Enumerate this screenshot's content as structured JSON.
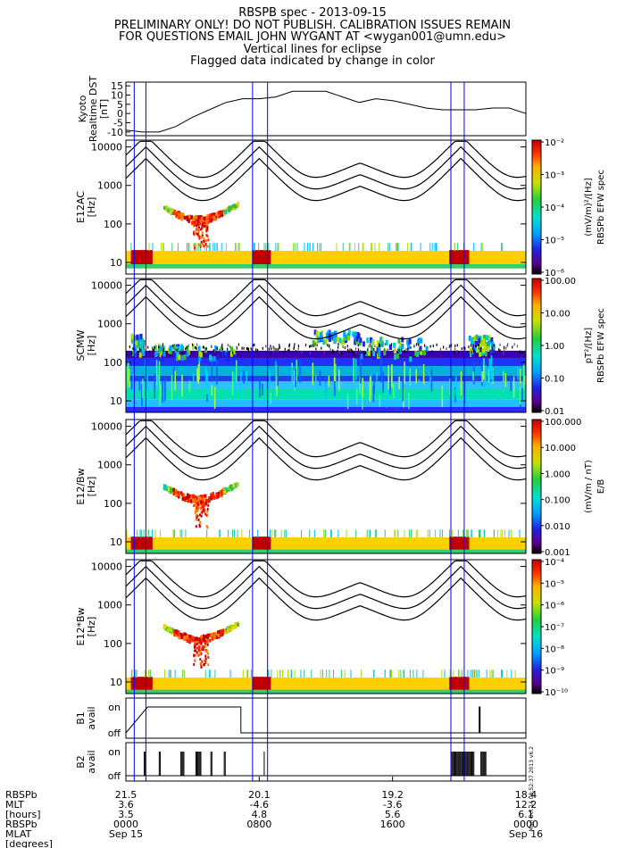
{
  "header": {
    "lines": [
      "RBSPB spec - 2013-09-15",
      "PRELIMINARY ONLY! DO NOT PUBLISH. CALIBRATION ISSUES REMAIN",
      "FOR QUESTIONS EMAIL JOHN WYGANT AT <wygan001@umn.edu>",
      "Vertical lines for eclipse",
      "Flagged data indicated by change in color"
    ]
  },
  "timestamp": "Mon Oct 14 08:52:37 2013 v6.2",
  "colors": {
    "eclipse_line": "#0000ff",
    "panel_border": "#000000",
    "bg": "#ffffff"
  },
  "chart_data": [
    {
      "type": "line",
      "id": "dst",
      "ylabel": [
        "Kyoto",
        "Realtime DST",
        "[nT]"
      ],
      "yticks": [
        "15",
        "10",
        "5",
        "0",
        "-5",
        "-10"
      ],
      "ylim": [
        -12,
        17
      ],
      "x_hours": [
        0,
        1,
        2,
        3,
        4,
        5,
        6,
        7,
        8,
        9,
        10,
        11,
        12,
        13,
        14,
        15,
        16,
        17,
        18,
        19,
        20,
        21,
        22,
        23,
        24
      ],
      "values": [
        -9,
        -10,
        -10,
        -7,
        -2,
        2,
        6,
        8,
        8,
        9,
        12,
        12,
        12,
        9,
        6,
        8,
        7,
        5,
        3,
        2,
        2,
        2,
        3,
        3,
        0
      ],
      "eclipse_hours": [
        0.5,
        1.2,
        7.6,
        8.5,
        19.5,
        20.3
      ]
    },
    {
      "type": "heatmap",
      "id": "e12ac",
      "ylabel": [
        "E12AC",
        "[Hz]"
      ],
      "yticks": [
        "10000",
        "1000",
        "100",
        "10"
      ],
      "colorbar_title": [
        "(mV/m)²/[Hz]",
        "RBSPb EFW spec"
      ],
      "colorbar_ticks": [
        "10⁻²",
        "10⁻³",
        "10⁻⁴",
        "10⁻⁵",
        "10⁻⁶"
      ]
    },
    {
      "type": "heatmap",
      "id": "scmw",
      "ylabel": [
        "SCMW",
        "[Hz]"
      ],
      "yticks": [
        "10000",
        "1000",
        "100",
        "10"
      ],
      "colorbar_title": [
        "pT²/[Hz]",
        "RBSPb EFW spec"
      ],
      "colorbar_ticks": [
        "100.00",
        "10.00",
        "1.00",
        "0.10",
        "0.01"
      ]
    },
    {
      "type": "heatmap",
      "id": "e12bw",
      "ylabel": [
        "E12/Bw",
        "[Hz]"
      ],
      "yticks": [
        "10000",
        "1000",
        "100",
        "10"
      ],
      "colorbar_title": [
        "(mV/m / nT)",
        "E/B"
      ],
      "colorbar_ticks": [
        "100.000",
        "10.000",
        "1.000",
        "0.100",
        "0.010",
        "0.001"
      ]
    },
    {
      "type": "heatmap",
      "id": "e12xbw",
      "ylabel": [
        "E12*Bw",
        "[Hz]"
      ],
      "yticks": [
        "10000",
        "1000",
        "100",
        "10"
      ],
      "colorbar_ticks": [
        "10⁻⁴",
        "10⁻⁵",
        "10⁻⁶",
        "10⁻⁷",
        "10⁻⁸",
        "10⁻⁹",
        "10⁻¹⁰"
      ]
    },
    {
      "type": "line",
      "id": "b1",
      "ylabel": [
        "B1",
        "avail"
      ],
      "yticks": [
        "on",
        "off"
      ],
      "segments_hours": [
        [
          0,
          0
        ],
        [
          1.3,
          1.3
        ],
        [
          1.3,
          1
        ],
        [
          6.9,
          1
        ],
        [
          6.9,
          0
        ],
        [
          21.2,
          0
        ],
        [
          21.2,
          1
        ],
        [
          21.25,
          1
        ],
        [
          21.25,
          0
        ],
        [
          24,
          0
        ]
      ]
    },
    {
      "type": "line",
      "id": "b2",
      "ylabel": [
        "B2",
        "avail"
      ],
      "yticks": [
        "on",
        "off"
      ]
    }
  ],
  "axis_labels": {
    "rows": [
      "RBSPb",
      "MLT",
      "[hours]",
      "RBSPb",
      "MLAT",
      "[degrees]"
    ],
    "ticks": [
      {
        "lines": [
          "21.5",
          "3.6",
          "3.5",
          "0000",
          "Sep 15"
        ]
      },
      {
        "lines": [
          "20.1",
          "-4.6",
          "4.8",
          "0800",
          ""
        ]
      },
      {
        "lines": [
          "19.2",
          "-3.6",
          "5.6",
          "1600",
          ""
        ]
      },
      {
        "lines": [
          "18.4",
          "12.2",
          "6.1",
          "0000",
          "Sep 16"
        ]
      }
    ]
  }
}
